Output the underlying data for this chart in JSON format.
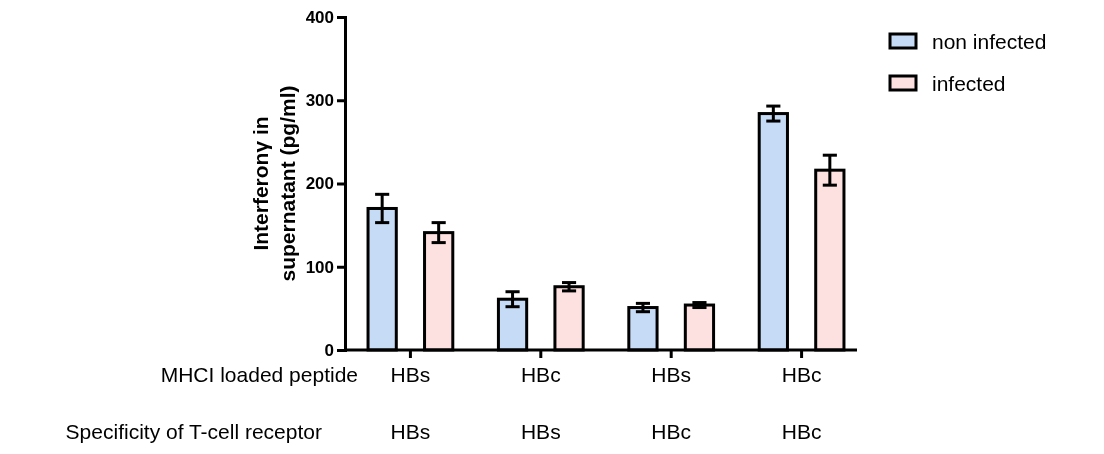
{
  "chart_data": {
    "type": "bar",
    "ylabel": "Interferonγ in supernatant (pg/ml)",
    "categories": [
      "HBs\nHBs",
      "HBc\nHBs",
      "HBs\nHBc",
      "HBc\nHBc"
    ],
    "series": [
      {
        "name": "non infected",
        "color": "#c6dbf5",
        "values": [
          170,
          61,
          51,
          284
        ],
        "errors": [
          17,
          9,
          5,
          9
        ]
      },
      {
        "name": "infected",
        "color": "#fde0e0",
        "values": [
          141,
          76,
          54,
          216
        ],
        "errors": [
          12,
          5,
          3,
          18
        ]
      }
    ],
    "ylim": [
      0,
      400
    ],
    "yticks": [
      0,
      100,
      200,
      300,
      400
    ],
    "grid": false,
    "legend": "top right",
    "annotations": [
      "MHCI loaded peptide",
      "Specificity of T-cell receptor"
    ]
  }
}
